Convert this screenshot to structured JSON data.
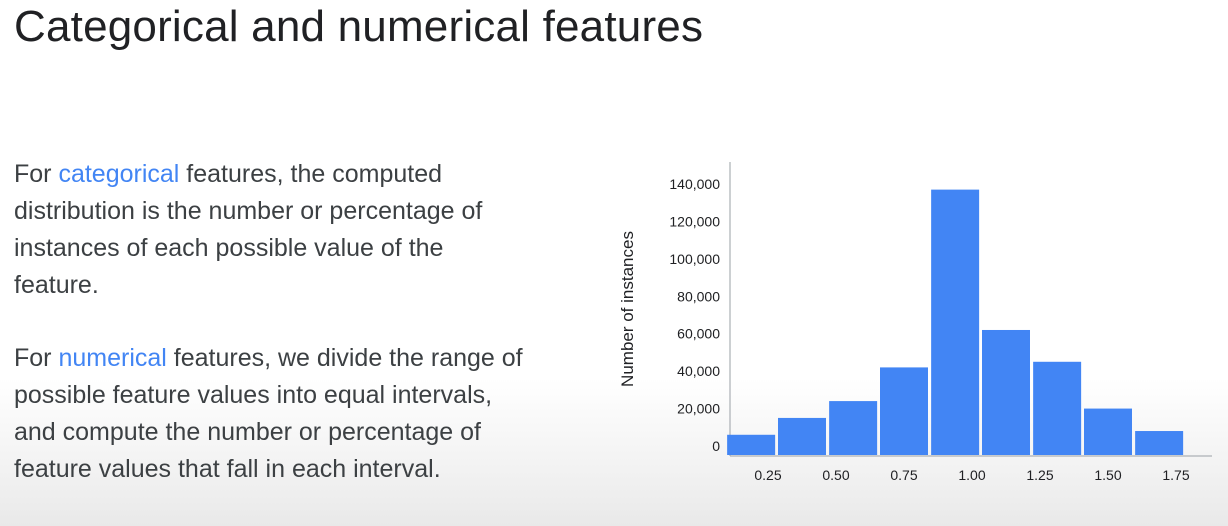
{
  "slide": {
    "title": "Categorical and numerical features"
  },
  "paragraphs": [
    {
      "prefix": "For ",
      "highlight": "categorical",
      "suffix": " features, the computed distribution is the number or percentage of instances of each possible value of the feature."
    },
    {
      "prefix": "For ",
      "highlight": "numerical",
      "suffix": " features, we divide the range of possible feature values into equal intervals, and compute the number or percentage of feature values that fall in each interval."
    }
  ],
  "colors": {
    "bar": "#4285f4",
    "highlight": "#4285f4",
    "axis": "#5f6368",
    "text": "#202124"
  },
  "chart_data": {
    "type": "bar",
    "ylabel": "Number of instances",
    "xlabel": "",
    "ylim": [
      0,
      140000
    ],
    "ytick_values": [
      0,
      20000,
      40000,
      60000,
      80000,
      100000,
      120000,
      140000
    ],
    "ytick_labels": [
      "0",
      "20,000",
      "40,000",
      "60,000",
      "80,000",
      "100,000",
      "120,000",
      "140,000"
    ],
    "xtick_values": [
      0.25,
      0.5,
      0.75,
      1.0,
      1.25,
      1.5,
      1.75
    ],
    "xtick_labels": [
      "0.25",
      "0.50",
      "0.75",
      "1.00",
      "1.25",
      "1.50",
      "1.75"
    ],
    "bins": [
      {
        "center": 0.188,
        "value": 6000
      },
      {
        "center": 0.375,
        "value": 15000
      },
      {
        "center": 0.563,
        "value": 24000
      },
      {
        "center": 0.75,
        "value": 42000
      },
      {
        "center": 0.938,
        "value": 137000
      },
      {
        "center": 1.125,
        "value": 62000
      },
      {
        "center": 1.313,
        "value": 45000
      },
      {
        "center": 1.5,
        "value": 20000
      },
      {
        "center": 1.688,
        "value": 8000
      }
    ],
    "grid": false
  }
}
